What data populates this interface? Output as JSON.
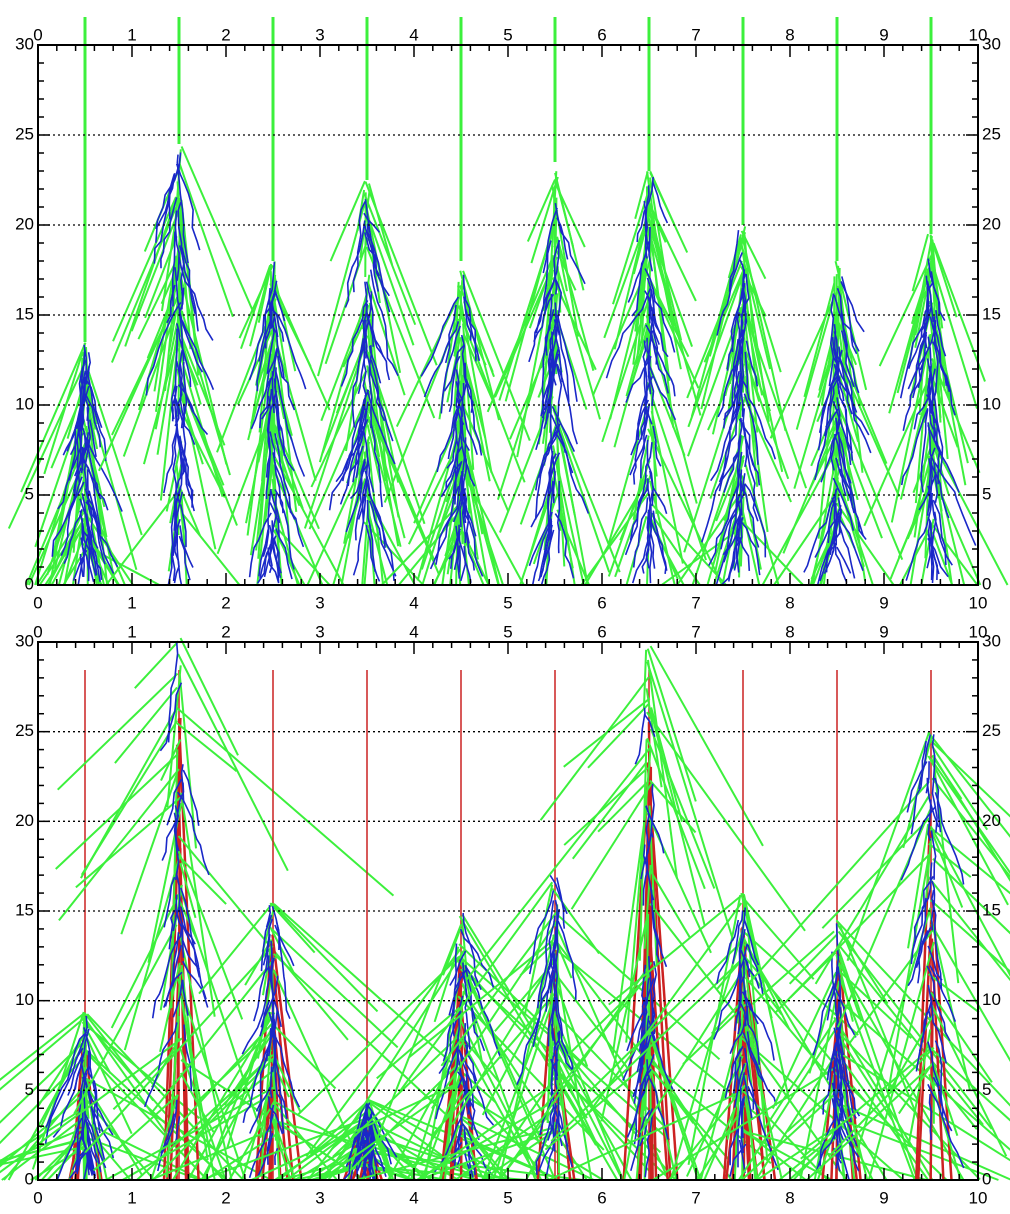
{
  "chart_data": [
    {
      "type": "shower",
      "xlim": [
        0,
        10
      ],
      "ylim": [
        0,
        30
      ],
      "xticks": [
        0,
        1,
        2,
        3,
        4,
        5,
        6,
        7,
        8,
        9,
        10
      ],
      "yticks": [
        0,
        5,
        10,
        15,
        20,
        25,
        30
      ],
      "grid": true,
      "x": [
        0.5,
        1.5,
        2.5,
        3.5,
        4.5,
        5.5,
        6.5,
        7.5,
        8.5,
        9.5
      ],
      "values": [
        13.5,
        24.5,
        18,
        22.5,
        18,
        23.5,
        23,
        20,
        18,
        19.5
      ],
      "color": "#3cf03c",
      "secondary_color": "#1a28c8",
      "beam_color": "#3cf03c"
    },
    {
      "type": "shower",
      "xlim": [
        0,
        10
      ],
      "ylim": [
        0,
        30
      ],
      "xticks": [
        0,
        1,
        2,
        3,
        4,
        5,
        6,
        7,
        8,
        9,
        10
      ],
      "yticks": [
        0,
        5,
        10,
        15,
        20,
        25,
        30
      ],
      "grid": true,
      "x": [
        0.5,
        1.5,
        2.5,
        3.5,
        4.5,
        5.5,
        6.5,
        7.5,
        8.5,
        9.5
      ],
      "values": [
        9.5,
        30.5,
        15.5,
        4.5,
        15,
        17,
        30,
        16,
        14.5,
        25
      ],
      "color": "#3cf03c",
      "secondary_color": "#1a28c8",
      "beam_color": "#cc2222"
    }
  ]
}
